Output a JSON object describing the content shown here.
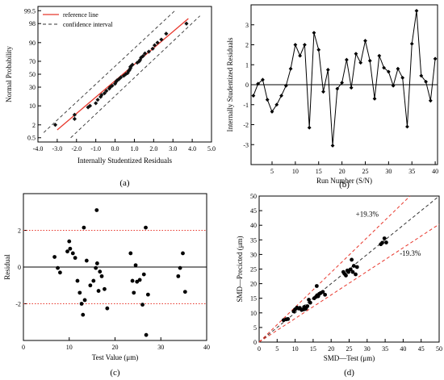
{
  "panel_labels": [
    "(a)",
    "(b)",
    "(c)",
    "(d)"
  ],
  "chart_data": [
    {
      "id": "a",
      "type": "scatter",
      "subtype": "normal-probability-plot",
      "xlabel": "Internally Studentized Residuals",
      "ylabel": "Normal Probability",
      "xlim": [
        -4.0,
        5.0
      ],
      "x_ticks": [
        -4.0,
        -3.0,
        -2.0,
        -1.0,
        0.0,
        1.0,
        2.0,
        3.0,
        4.0,
        5.0
      ],
      "x_tick_labels": [
        "-4.0",
        "-3.0",
        "-2.0",
        "-1.0",
        "0.0",
        "1.0",
        "2.0",
        "3.0",
        "4.0",
        "5.0"
      ],
      "y_scale": "probability",
      "y_ticks": [
        0.5,
        2,
        10,
        30,
        50,
        70,
        90,
        98,
        99.5
      ],
      "y_tick_labels": [
        "0.5",
        "2",
        "10",
        "30",
        "50",
        "70",
        "90",
        "98",
        "99.5"
      ],
      "grid": false,
      "legend_position": "top-left",
      "legend": [
        {
          "label": "reference line",
          "color": "#e8372c",
          "style": "solid"
        },
        {
          "label": "confidence interval",
          "color": "#333333",
          "style": "dashed"
        }
      ],
      "point_color": "#111111",
      "x": [
        -3.1,
        -2.1,
        -2.1,
        -1.4,
        -1.3,
        -1.0,
        -0.9,
        -0.75,
        -0.7,
        -0.55,
        -0.45,
        -0.3,
        -0.25,
        -0.15,
        0.0,
        0.05,
        0.1,
        0.2,
        0.3,
        0.45,
        0.55,
        0.65,
        0.7,
        0.75,
        0.8,
        0.8,
        0.9,
        1.15,
        1.25,
        1.3,
        1.35,
        1.45,
        1.55,
        1.75,
        1.95,
        2.05,
        2.2,
        2.4,
        2.65,
        3.7
      ],
      "y": [
        2,
        3.5,
        5,
        9,
        10,
        12,
        15,
        18,
        20,
        22,
        25,
        28,
        30,
        32,
        35,
        38,
        40,
        42,
        45,
        47.5,
        50,
        52,
        55,
        57,
        60,
        62,
        65,
        68,
        70,
        72,
        75,
        77,
        80,
        82,
        85,
        88,
        90,
        92,
        95,
        98
      ],
      "reference_line": {
        "x": [
          -3.0,
          3.8
        ],
        "y": [
          1.2,
          98.8
        ]
      },
      "confidence_upper": {
        "x": [
          -3.7,
          3.1
        ],
        "y": [
          0.9,
          99.5
        ]
      },
      "confidence_lower": {
        "x": [
          -2.3,
          4.4
        ],
        "y": [
          0.5,
          99.1
        ]
      }
    },
    {
      "id": "b",
      "type": "line",
      "xlabel": "Run Number (S/N)",
      "ylabel": "Internally Studentized Residuals",
      "xlim": [
        0.5,
        40.5
      ],
      "ylim": [
        -4,
        4
      ],
      "x_ticks": [
        5,
        10,
        15,
        20,
        25,
        30,
        35,
        40
      ],
      "y_ticks": [
        -3,
        -2,
        -1,
        0,
        1,
        2,
        3
      ],
      "baseline": 0,
      "grid": false,
      "x": [
        1,
        2,
        3,
        4,
        5,
        6,
        7,
        8,
        9,
        10,
        11,
        12,
        13,
        14,
        15,
        16,
        17,
        18,
        19,
        20,
        21,
        22,
        23,
        24,
        25,
        26,
        27,
        28,
        29,
        30,
        31,
        32,
        33,
        34,
        35,
        36,
        37,
        38,
        39,
        40
      ],
      "y": [
        -0.55,
        0.05,
        0.25,
        -0.75,
        -1.35,
        -1.0,
        -0.55,
        -0.05,
        0.8,
        2.0,
        1.45,
        2.0,
        -2.15,
        2.6,
        1.75,
        -0.35,
        0.75,
        -3.05,
        -0.2,
        0.1,
        1.25,
        -0.15,
        1.55,
        1.1,
        2.2,
        1.2,
        -0.7,
        1.45,
        0.85,
        0.65,
        -0.05,
        0.8,
        0.35,
        -2.1,
        2.05,
        3.7,
        0.45,
        0.15,
        -0.8,
        1.3
      ]
    },
    {
      "id": "c",
      "type": "scatter",
      "xlabel": "Test Value (μm)",
      "ylabel": "Residual",
      "xlim": [
        0,
        40
      ],
      "ylim": [
        -4,
        4
      ],
      "x_ticks": [
        0,
        10,
        20,
        30,
        40
      ],
      "y_ticks": [
        -2,
        0,
        2
      ],
      "reference_lines": [
        {
          "y": 2,
          "color": "#e8372c",
          "style": "dotted"
        },
        {
          "y": 0,
          "color": "#000000",
          "style": "solid"
        },
        {
          "y": -2,
          "color": "#e8372c",
          "style": "dotted"
        }
      ],
      "grid": false,
      "x": [
        6.8,
        7.5,
        8.0,
        9.6,
        10.0,
        10.2,
        10.8,
        11.3,
        11.8,
        12.3,
        12.7,
        13.0,
        13.4,
        13.8,
        14.6,
        15.3,
        15.8,
        16.1,
        16.4,
        16.7,
        17.1,
        17.7,
        18.3,
        23.4,
        23.8,
        24.1,
        24.5,
        24.8,
        25.4,
        26.0,
        26.3,
        26.8,
        27.2,
        33.8,
        34.2,
        34.8,
        35.3,
        16.0,
        26.7,
        13.2
      ],
      "y": [
        0.55,
        -0.05,
        -0.3,
        0.85,
        1.4,
        1.0,
        0.75,
        0.5,
        -0.75,
        -1.4,
        -2.0,
        -2.6,
        -1.8,
        0.35,
        -1.0,
        -0.75,
        -0.05,
        0.2,
        -1.3,
        -0.25,
        -0.5,
        -1.2,
        -2.25,
        0.75,
        -0.75,
        -1.4,
        0.1,
        -0.8,
        -0.7,
        -2.05,
        -0.4,
        -3.7,
        -1.5,
        -0.5,
        -0.05,
        0.75,
        -1.35,
        3.1,
        2.15,
        2.15
      ]
    },
    {
      "id": "d",
      "type": "scatter",
      "xlabel": "SMD—Test (μm)",
      "ylabel": "SMD—Precicted (μm)",
      "xlim": [
        0,
        50
      ],
      "ylim": [
        0,
        50
      ],
      "x_ticks": [
        0,
        5,
        10,
        15,
        20,
        25,
        30,
        35,
        40,
        45,
        50
      ],
      "y_ticks": [
        0,
        5,
        10,
        15,
        20,
        25,
        30,
        35,
        40,
        45,
        50
      ],
      "annotations": [
        "+19.3%",
        "-19.3%"
      ],
      "lines": [
        {
          "slope": 1.0,
          "color": "#333333",
          "style": "dashed"
        },
        {
          "slope": 1.193,
          "color": "#e8372c",
          "style": "dashed"
        },
        {
          "slope": 0.807,
          "color": "#e8372c",
          "style": "dashed"
        }
      ],
      "grid": false,
      "x": [
        6.8,
        7.5,
        8.0,
        9.6,
        10.0,
        10.5,
        11.0,
        11.3,
        11.8,
        12.3,
        12.7,
        13.0,
        13.4,
        13.8,
        14.2,
        15.3,
        15.8,
        16.1,
        16.4,
        16.7,
        17.1,
        17.7,
        18.3,
        23.4,
        23.8,
        24.1,
        24.5,
        24.8,
        25.4,
        26.0,
        26.3,
        26.8,
        27.2,
        33.8,
        34.2,
        34.8,
        35.3,
        16.0,
        12.5,
        25.7
      ],
      "y": [
        7.5,
        7.8,
        7.9,
        10.5,
        11.2,
        11.8,
        11.5,
        11.7,
        11.0,
        11.2,
        11.3,
        11.5,
        12.3,
        14.5,
        13.5,
        15.0,
        15.5,
        16.0,
        15.7,
        16.5,
        16.8,
        17.2,
        16.2,
        24.0,
        23.3,
        22.8,
        24.5,
        24.0,
        24.9,
        24.0,
        26.1,
        23.2,
        25.7,
        33.5,
        34.0,
        35.5,
        34.1,
        19.2,
        12.0,
        28.2
      ]
    }
  ]
}
